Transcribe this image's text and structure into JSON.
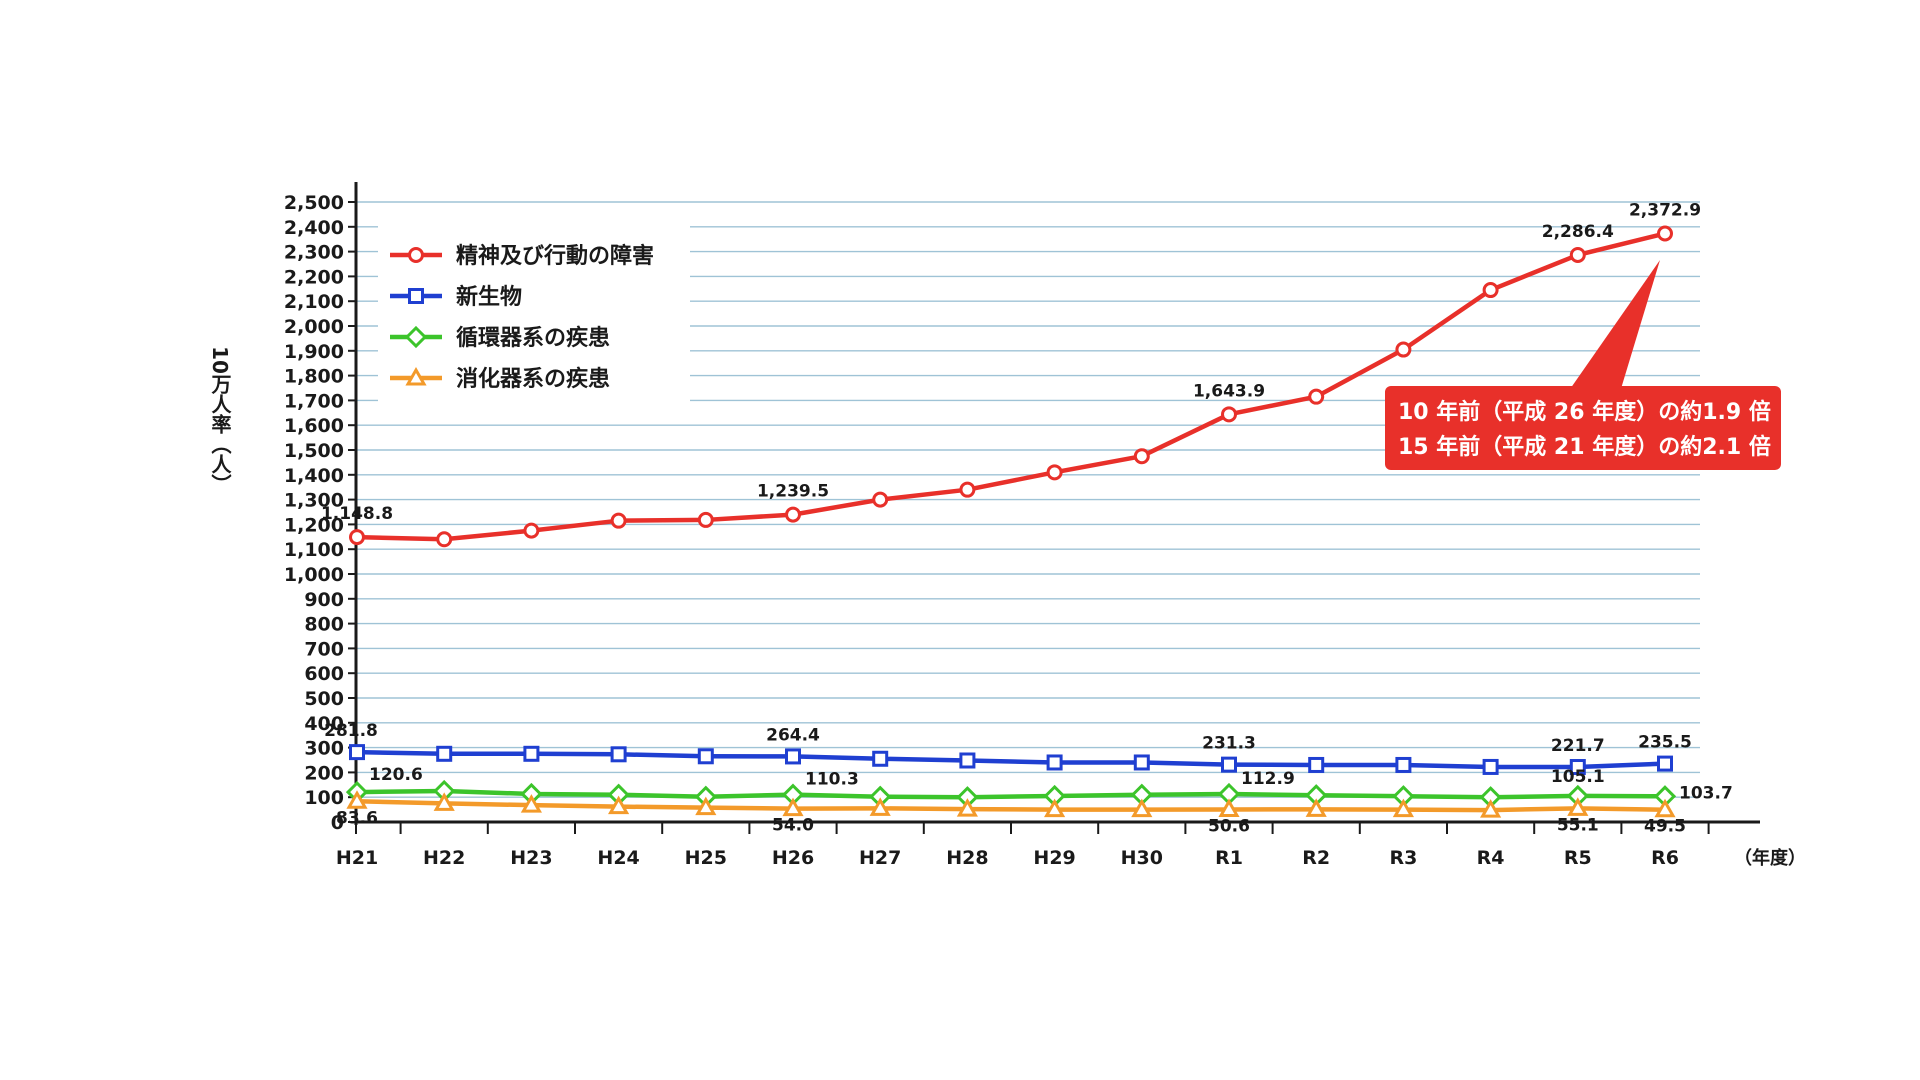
{
  "chart_data": {
    "type": "line",
    "ylabel": "10万人率（人）",
    "xlabel_unit": "（年度）",
    "ylim": [
      0,
      2500
    ],
    "yticks": [
      0,
      100,
      200,
      300,
      400,
      500,
      600,
      700,
      800,
      900,
      1000,
      1100,
      1200,
      1300,
      1400,
      1500,
      1600,
      1700,
      1800,
      1900,
      2000,
      2100,
      2200,
      2300,
      2400,
      2500
    ],
    "ytick_labels": [
      "0",
      "100",
      "200",
      "300",
      "400",
      "500",
      "600",
      "700",
      "800",
      "900",
      "1,000",
      "1,100",
      "1,200",
      "1,300",
      "1,400",
      "1,500",
      "1,600",
      "1,700",
      "1,800",
      "1,900",
      "2,000",
      "2,100",
      "2,200",
      "2,300",
      "2,400",
      "2,500"
    ],
    "categories": [
      "H21",
      "H22",
      "H23",
      "H24",
      "H25",
      "H26",
      "H27",
      "H28",
      "H29",
      "H30",
      "R1",
      "R2",
      "R3",
      "R4",
      "R5",
      "R6"
    ],
    "grid": true,
    "legend_position": "top-left",
    "series": [
      {
        "name": "精神及び行動の障害",
        "color": "#e8302a",
        "marker": "circle",
        "values": [
          1148.8,
          1140,
          1175,
          1215,
          1218,
          1239.5,
          1300,
          1340,
          1410,
          1475,
          1643.9,
          1715,
          1905,
          2145,
          2286.4,
          2372.9
        ],
        "labels": {
          "0": "1,148.8",
          "5": "1,239.5",
          "10": "1,643.9",
          "14": "2,286.4",
          "15": "2,372.9"
        }
      },
      {
        "name": "新生物",
        "color": "#1f3fd1",
        "marker": "square",
        "values": [
          281.8,
          275,
          275,
          273,
          265,
          264.4,
          255,
          248,
          240,
          240,
          231.3,
          230,
          230,
          222,
          221.7,
          235.5
        ],
        "labels": {
          "0": "281.8",
          "5": "264.4",
          "10": "231.3",
          "14": "221.7",
          "15": "235.5"
        }
      },
      {
        "name": "循環器系の疾患",
        "color": "#3cc42b",
        "marker": "diamond",
        "values": [
          120.6,
          125,
          113,
          110,
          102,
          110.3,
          102,
          100,
          105,
          110,
          112.9,
          108,
          104,
          100,
          105.1,
          103.7
        ],
        "labels": {
          "0": "120.6",
          "5": "110.3",
          "10": "112.9",
          "14": "105.1",
          "15": "103.7"
        }
      },
      {
        "name": "消化器系の疾患",
        "color": "#f39a2a",
        "marker": "triangle",
        "values": [
          83.6,
          75,
          68,
          62,
          58,
          54.0,
          55,
          52,
          50,
          50,
          50.6,
          51,
          50,
          48,
          55.1,
          49.5
        ],
        "labels": {
          "0": "83.6",
          "5": "54.0",
          "10": "50.6",
          "14": "55.1",
          "15": "49.5"
        }
      }
    ],
    "annotation": {
      "lines": [
        "10 年前（平成 26 年度）の約1.9 倍",
        "15 年前（平成 21 年度）の約2.1 倍"
      ],
      "color": "#e8302a"
    }
  }
}
